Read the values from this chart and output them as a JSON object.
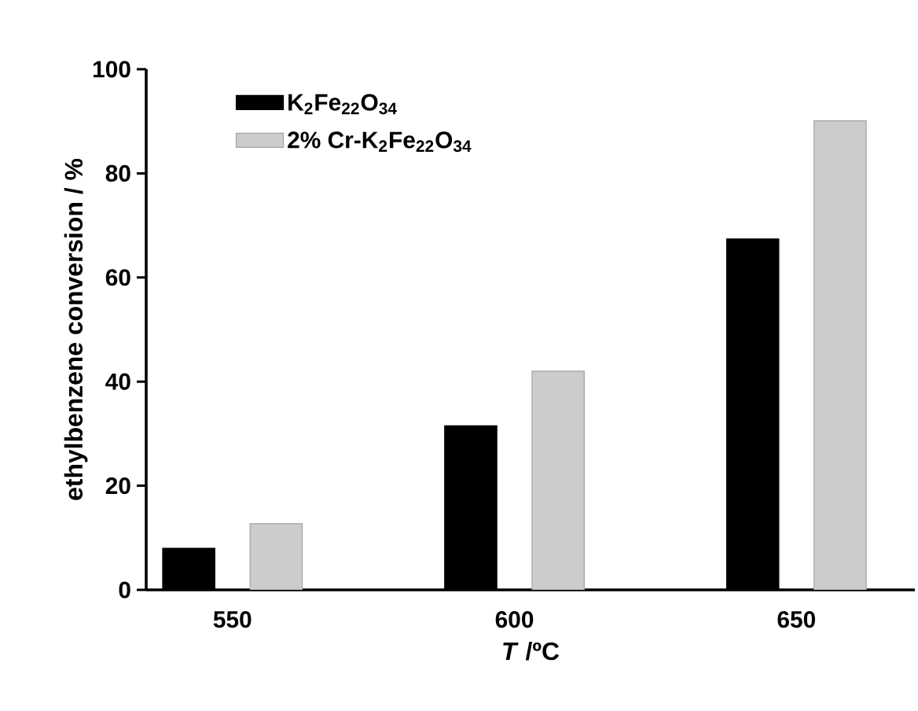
{
  "chart_data": {
    "type": "bar",
    "xlabel": "*T* /ºC",
    "ylabel": "ethylbenzene conversion / %",
    "categories": [
      "550",
      "600",
      "650"
    ],
    "series": [
      {
        "name": "K$_{2}$Fe$_{22}$O$_{34}$",
        "color": "#000000",
        "values": [
          8.0,
          31.5,
          67.4
        ]
      },
      {
        "name": "2% Cr-K$_{2}$Fe$_{22}$O$_{34}$",
        "color": "#cccccc",
        "values": [
          12.7,
          42.0,
          90.1
        ]
      }
    ],
    "ylim": [
      0,
      100
    ],
    "yticks": [
      0,
      20,
      40,
      60,
      80,
      100
    ],
    "legend": "top left"
  }
}
